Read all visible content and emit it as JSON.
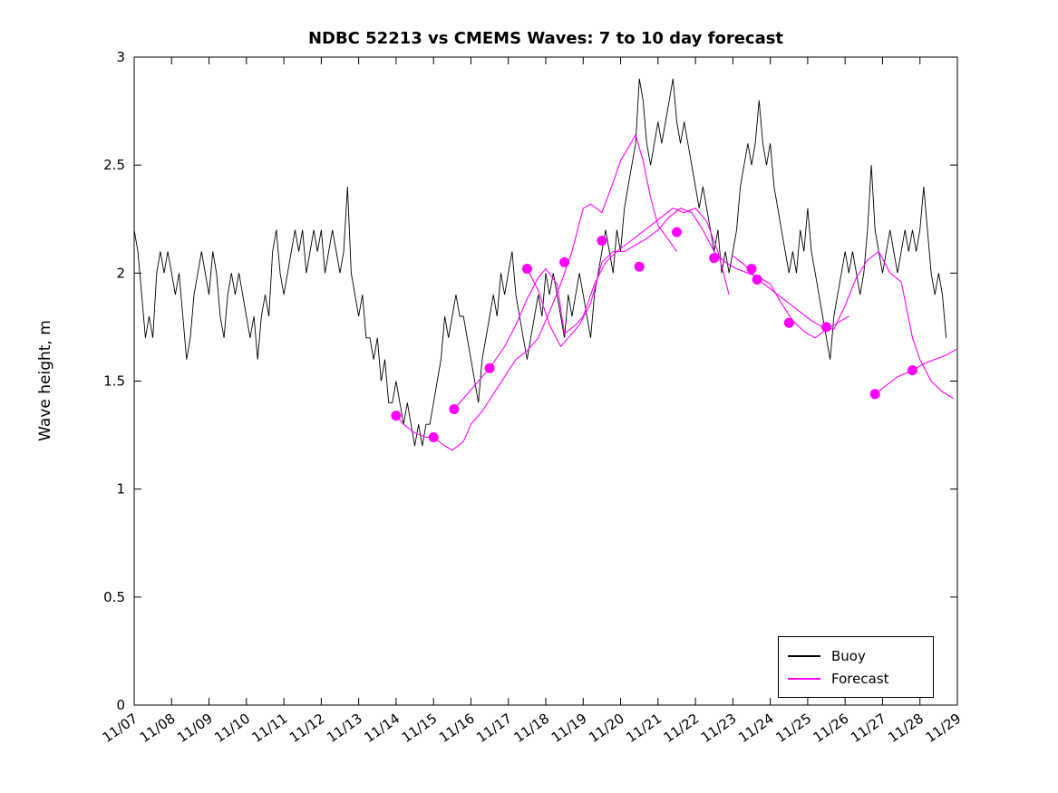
{
  "figure": {
    "title": "NDBC 52213 vs CMEMS Waves: 7 to 10 day forecast",
    "ylabel": "Wave height, m"
  },
  "chart_data": {
    "type": "line",
    "title": "NDBC 52213 vs CMEMS Waves: 7 to 10 day forecast",
    "xlabel": "",
    "ylabel": "Wave height, m",
    "ylim": [
      0,
      3
    ],
    "y_ticks": [
      0,
      0.5,
      1,
      1.5,
      2,
      2.5,
      3
    ],
    "y_tick_labels": [
      "0",
      "0.5",
      "1",
      "1.5",
      "2",
      "2.5",
      "3"
    ],
    "xlim_days": [
      7,
      29
    ],
    "x_tick_days": [
      7,
      8,
      9,
      10,
      11,
      12,
      13,
      14,
      15,
      16,
      17,
      18,
      19,
      20,
      21,
      22,
      23,
      24,
      25,
      26,
      27,
      28,
      29
    ],
    "x_ticks": [
      "11/07",
      "11/08",
      "11/09",
      "11/10",
      "11/11",
      "11/12",
      "11/13",
      "11/14",
      "11/15",
      "11/16",
      "11/17",
      "11/18",
      "11/19",
      "11/20",
      "11/21",
      "11/22",
      "11/23",
      "11/24",
      "11/25",
      "11/26",
      "11/27",
      "11/28",
      "11/29"
    ],
    "grid": false,
    "legend_position": "lower right",
    "legend": [
      {
        "label": "Buoy",
        "color": "#000000"
      },
      {
        "label": "Forecast",
        "color": "#ff00ff"
      }
    ],
    "series": [
      {
        "name": "Buoy",
        "color": "#000000",
        "line_width": 0.9,
        "x_start_day": 7.0,
        "x_step_days": 0.1,
        "y": [
          2.2,
          2.1,
          1.9,
          1.7,
          1.8,
          1.7,
          2.0,
          2.1,
          2.0,
          2.1,
          2.0,
          1.9,
          2.0,
          1.8,
          1.6,
          1.7,
          1.9,
          2.0,
          2.1,
          2.0,
          1.9,
          2.1,
          2.0,
          1.8,
          1.7,
          1.9,
          2.0,
          1.9,
          2.0,
          1.9,
          1.8,
          1.7,
          1.8,
          1.6,
          1.8,
          1.9,
          1.8,
          2.1,
          2.2,
          2.0,
          1.9,
          2.0,
          2.1,
          2.2,
          2.1,
          2.2,
          2.0,
          2.1,
          2.2,
          2.1,
          2.2,
          2.0,
          2.1,
          2.2,
          2.1,
          2.0,
          2.1,
          2.4,
          2.0,
          1.9,
          1.8,
          1.9,
          1.7,
          1.7,
          1.6,
          1.7,
          1.5,
          1.6,
          1.4,
          1.4,
          1.5,
          1.4,
          1.3,
          1.4,
          1.3,
          1.2,
          1.3,
          1.2,
          1.3,
          1.3,
          1.4,
          1.5,
          1.6,
          1.8,
          1.7,
          1.8,
          1.9,
          1.8,
          1.8,
          1.7,
          1.6,
          1.5,
          1.4,
          1.6,
          1.7,
          1.8,
          1.9,
          1.8,
          2.0,
          1.9,
          2.0,
          2.1,
          1.9,
          1.8,
          1.7,
          1.6,
          1.7,
          1.8,
          1.9,
          1.8,
          2.0,
          1.9,
          2.0,
          1.9,
          1.8,
          1.7,
          1.9,
          1.8,
          1.9,
          2.0,
          1.9,
          1.8,
          1.7,
          1.9,
          2.0,
          2.1,
          2.2,
          2.1,
          2.0,
          2.2,
          2.1,
          2.3,
          2.4,
          2.5,
          2.6,
          2.9,
          2.8,
          2.6,
          2.5,
          2.6,
          2.7,
          2.6,
          2.7,
          2.8,
          2.9,
          2.7,
          2.6,
          2.7,
          2.6,
          2.5,
          2.4,
          2.3,
          2.4,
          2.3,
          2.2,
          2.1,
          2.2,
          2.0,
          2.1,
          2.0,
          2.1,
          2.2,
          2.4,
          2.5,
          2.6,
          2.5,
          2.6,
          2.8,
          2.6,
          2.5,
          2.6,
          2.4,
          2.3,
          2.2,
          2.1,
          2.0,
          2.1,
          2.0,
          2.2,
          2.1,
          2.3,
          2.1,
          2.0,
          1.9,
          1.8,
          1.7,
          1.6,
          1.8,
          1.9,
          2.0,
          2.1,
          2.0,
          2.1,
          2.0,
          1.9,
          2.0,
          2.2,
          2.5,
          2.2,
          2.1,
          2.0,
          2.1,
          2.2,
          2.1,
          2.0,
          2.1,
          2.2,
          2.1,
          2.2,
          2.1,
          2.2,
          2.4,
          2.2,
          2.0,
          1.9,
          2.0,
          1.9,
          1.7
        ]
      },
      {
        "name": "Forecast",
        "color": "#ff00ff",
        "line_width": 1.1,
        "segments": [
          {
            "x": [
              14.0,
              14.2,
              14.5,
              14.8,
              15.0,
              15.3,
              15.5,
              15.8,
              16.0,
              16.3,
              16.6,
              16.9,
              17.2,
              17.5,
              17.8,
              18.1,
              18.4,
              18.7,
              19.0,
              19.2,
              19.5,
              19.8,
              20.0,
              20.2,
              20.4,
              20.6,
              20.8,
              21.0,
              21.3,
              21.5
            ],
            "y": [
              1.34,
              1.3,
              1.26,
              1.24,
              1.24,
              1.2,
              1.18,
              1.22,
              1.3,
              1.36,
              1.44,
              1.52,
              1.6,
              1.64,
              1.7,
              1.82,
              1.95,
              2.1,
              2.3,
              2.32,
              2.28,
              2.42,
              2.52,
              2.58,
              2.64,
              2.52,
              2.35,
              2.22,
              2.15,
              2.1
            ]
          },
          {
            "x": [
              15.55,
              15.8,
              16.1,
              16.5,
              16.9,
              17.2,
              17.5,
              17.8,
              18.0,
              18.3,
              18.5,
              18.8,
              19.0,
              19.3,
              19.6,
              19.9,
              20.2,
              20.5,
              20.8,
              21.1,
              21.4,
              21.7,
              22.0,
              22.3,
              22.6,
              22.9
            ],
            "y": [
              1.37,
              1.42,
              1.48,
              1.56,
              1.66,
              1.76,
              1.88,
              1.98,
              2.02,
              1.95,
              1.72,
              1.76,
              1.8,
              1.95,
              2.05,
              2.1,
              2.14,
              2.18,
              2.22,
              2.26,
              2.3,
              2.28,
              2.3,
              2.24,
              2.1,
              1.9
            ]
          },
          {
            "x": [
              17.5,
              17.8,
              18.1,
              18.4,
              18.6,
              18.9,
              19.2,
              19.5,
              19.8,
              20.1,
              20.4,
              20.7,
              21.0,
              21.3,
              21.6,
              21.9,
              22.2,
              22.5,
              22.8,
              23.1,
              23.4,
              23.7,
              24.0,
              24.3,
              24.6,
              24.9,
              25.2,
              25.5,
              25.8,
              26.1
            ],
            "y": [
              2.02,
              1.92,
              1.76,
              1.66,
              1.7,
              1.76,
              1.86,
              2.05,
              2.1,
              2.1,
              2.13,
              2.16,
              2.2,
              2.26,
              2.3,
              2.28,
              2.2,
              2.1,
              2.05,
              2.02,
              2.0,
              1.98,
              1.95,
              1.86,
              1.78,
              1.73,
              1.7,
              1.74,
              1.77,
              1.8
            ]
          },
          {
            "x": [
              23.0,
              23.3,
              23.6,
              23.9,
              24.2,
              24.5,
              24.8,
              25.1,
              25.4,
              25.7,
              26.0,
              26.3,
              26.6,
              26.9,
              27.2,
              27.5,
              27.8,
              28.0,
              28.3,
              28.6,
              28.9
            ],
            "y": [
              2.08,
              2.04,
              1.98,
              1.94,
              1.9,
              1.86,
              1.82,
              1.78,
              1.75,
              1.74,
              1.85,
              1.98,
              2.06,
              2.1,
              2.0,
              1.96,
              1.7,
              1.6,
              1.5,
              1.45,
              1.42
            ]
          },
          {
            "x": [
              26.8,
              27.1,
              27.4,
              27.8,
              28.1,
              28.4,
              28.7,
              29.0
            ],
            "y": [
              1.44,
              1.48,
              1.52,
              1.55,
              1.58,
              1.6,
              1.62,
              1.65
            ]
          }
        ],
        "markers": {
          "shape": "filled-circle",
          "radius_px": 5.5,
          "x": [
            14.0,
            15.0,
            15.55,
            16.5,
            17.5,
            18.5,
            19.5,
            20.5,
            21.5,
            22.5,
            23.5,
            23.65,
            24.5,
            25.5,
            26.8,
            27.8
          ],
          "y": [
            1.34,
            1.24,
            1.37,
            1.56,
            2.02,
            2.05,
            2.15,
            2.03,
            2.19,
            2.07,
            2.02,
            1.97,
            1.77,
            1.75,
            1.44,
            1.55
          ]
        }
      }
    ]
  }
}
